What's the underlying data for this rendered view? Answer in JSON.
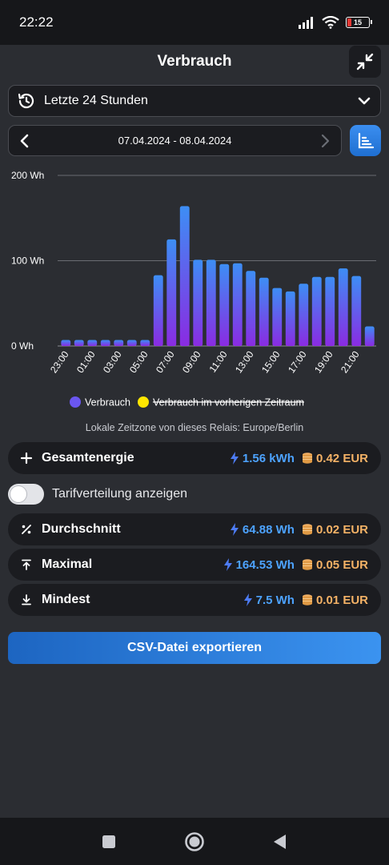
{
  "status_bar": {
    "time": "22:22",
    "battery": "15"
  },
  "header": {
    "title": "Verbrauch"
  },
  "range": {
    "label": "Letzte 24 Stunden"
  },
  "date_nav": {
    "range": "07.04.2024 - 08.04.2024"
  },
  "chart_data": {
    "type": "bar",
    "y_ticks": [
      "200 Wh",
      "100 Wh",
      "0 Wh"
    ],
    "ylim": [
      0,
      200
    ],
    "categories": [
      "23:00",
      "00:00",
      "01:00",
      "02:00",
      "03:00",
      "04:00",
      "05:00",
      "06:00",
      "07:00",
      "08:00",
      "09:00",
      "10:00",
      "11:00",
      "12:00",
      "13:00",
      "14:00",
      "15:00",
      "16:00",
      "17:00",
      "18:00",
      "19:00",
      "20:00",
      "21:00",
      "22:00"
    ],
    "x_tick_labels": [
      "23:00",
      "01:00",
      "03:00",
      "05:00",
      "07:00",
      "09:00",
      "11:00",
      "13:00",
      "15:00",
      "17:00",
      "19:00",
      "21:00"
    ],
    "series": [
      {
        "name": "Verbrauch",
        "values": [
          7,
          7,
          7,
          7,
          7,
          7,
          7,
          83,
          125,
          164,
          101,
          101,
          96,
          97,
          88,
          80,
          68,
          64,
          73,
          81,
          81,
          91,
          82,
          23
        ]
      }
    ],
    "legend": [
      {
        "label": "Verbrauch",
        "color": "#7c5cf0",
        "strikethrough": false
      },
      {
        "label": "Verbrauch im vorherigen Zeitraum",
        "color": "#ffe600",
        "strikethrough": true
      }
    ],
    "legend_position": "bottom",
    "grid": true
  },
  "timezone_text": "Lokale Zeitzone von dieses Relais: Europe/Berlin",
  "stats": {
    "total": {
      "label": "Gesamtenergie",
      "energy": "1.56 kWh",
      "cost": "0.42 EUR",
      "icon": "plus-icon"
    },
    "average": {
      "label": "Durchschnitt",
      "energy": "64.88 Wh",
      "cost": "0.02 EUR",
      "icon": "percent-icon"
    },
    "max": {
      "label": "Maximal",
      "energy": "164.53 Wh",
      "cost": "0.05 EUR",
      "icon": "arrow-up-to-line-icon"
    },
    "min": {
      "label": "Mindest",
      "energy": "7.5 Wh",
      "cost": "0.01 EUR",
      "icon": "arrow-down-to-line-icon"
    }
  },
  "tarif": {
    "label": "Tarifverteilung anzeigen",
    "enabled": false
  },
  "export": {
    "label": "CSV-Datei exportieren"
  },
  "colors": {
    "accent": "#3b93f0",
    "energy": "#4da3ff",
    "cost": "#f4b266",
    "bar_top": "#3d8ef5",
    "bar_bottom": "#8a2be2"
  }
}
